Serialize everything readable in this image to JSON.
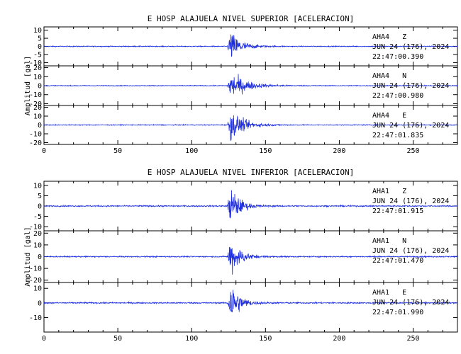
{
  "colors": {
    "trace": "#1f2fe0",
    "axis": "#000000",
    "background": "#ffffff"
  },
  "chart_data": [
    {
      "type": "line",
      "title": "E HOSP ALAJUELA NIVEL SUPERIOR [ACELERACION]",
      "ylabel": "Amplitud [gal]",
      "xlim": [
        0,
        280
      ],
      "xticks": [
        0,
        50,
        100,
        150,
        200,
        250
      ],
      "onset_time_s": 125,
      "channels": [
        {
          "station": "AHA4",
          "component": "Z",
          "date": "JUN 24 (176), 2024",
          "time": "22:47:00.390",
          "yticks": [
            "10",
            "5",
            "0",
            "-5",
            "-10"
          ],
          "ylim": [
            -12,
            12
          ],
          "peak_amplitude": 11,
          "coda_duration_s": 25
        },
        {
          "station": "AHA4",
          "component": "N",
          "date": "JUN 24 (176), 2024",
          "time": "22:47:00.980",
          "yticks": [
            "20",
            "10",
            "0",
            "-10",
            "-20"
          ],
          "ylim": [
            -22,
            22
          ],
          "peak_amplitude": 18,
          "coda_duration_s": 35
        },
        {
          "station": "AHA4",
          "component": "E",
          "date": "JUN 24 (176), 2024",
          "time": "22:47:01.835",
          "yticks": [
            "20",
            "10",
            "0",
            "-10",
            "-20"
          ],
          "ylim": [
            -22,
            22
          ],
          "peak_amplitude": 20,
          "coda_duration_s": 30
        }
      ]
    },
    {
      "type": "line",
      "title": "E HOSP ALAJUELA NIVEL INFERIOR [ACELERACION]",
      "ylabel": "Amplitud [gal]",
      "xlim": [
        0,
        280
      ],
      "xticks": [
        0,
        50,
        100,
        150,
        200,
        250
      ],
      "onset_time_s": 125,
      "channels": [
        {
          "station": "AHA1",
          "component": "Z",
          "date": "JUN 24 (176), 2024",
          "time": "22:47:01.915",
          "yticks": [
            "10",
            "5",
            "0",
            "-5",
            "-10"
          ],
          "ylim": [
            -12,
            12
          ],
          "peak_amplitude": 12,
          "coda_duration_s": 20
        },
        {
          "station": "AHA1",
          "component": "N",
          "date": "JUN 24 (176), 2024",
          "time": "22:47:01.470",
          "yticks": [
            "20",
            "10",
            "0",
            "-10",
            "-20"
          ],
          "ylim": [
            -22,
            22
          ],
          "peak_amplitude": 20,
          "coda_duration_s": 22
        },
        {
          "station": "AHA1",
          "component": "E",
          "date": "JUN 24 (176), 2024",
          "time": "22:47:01.990",
          "yticks": [
            "10",
            "0",
            "-10"
          ],
          "ylim": [
            -20,
            14
          ],
          "peak_amplitude": 18,
          "coda_duration_s": 20
        }
      ]
    }
  ]
}
